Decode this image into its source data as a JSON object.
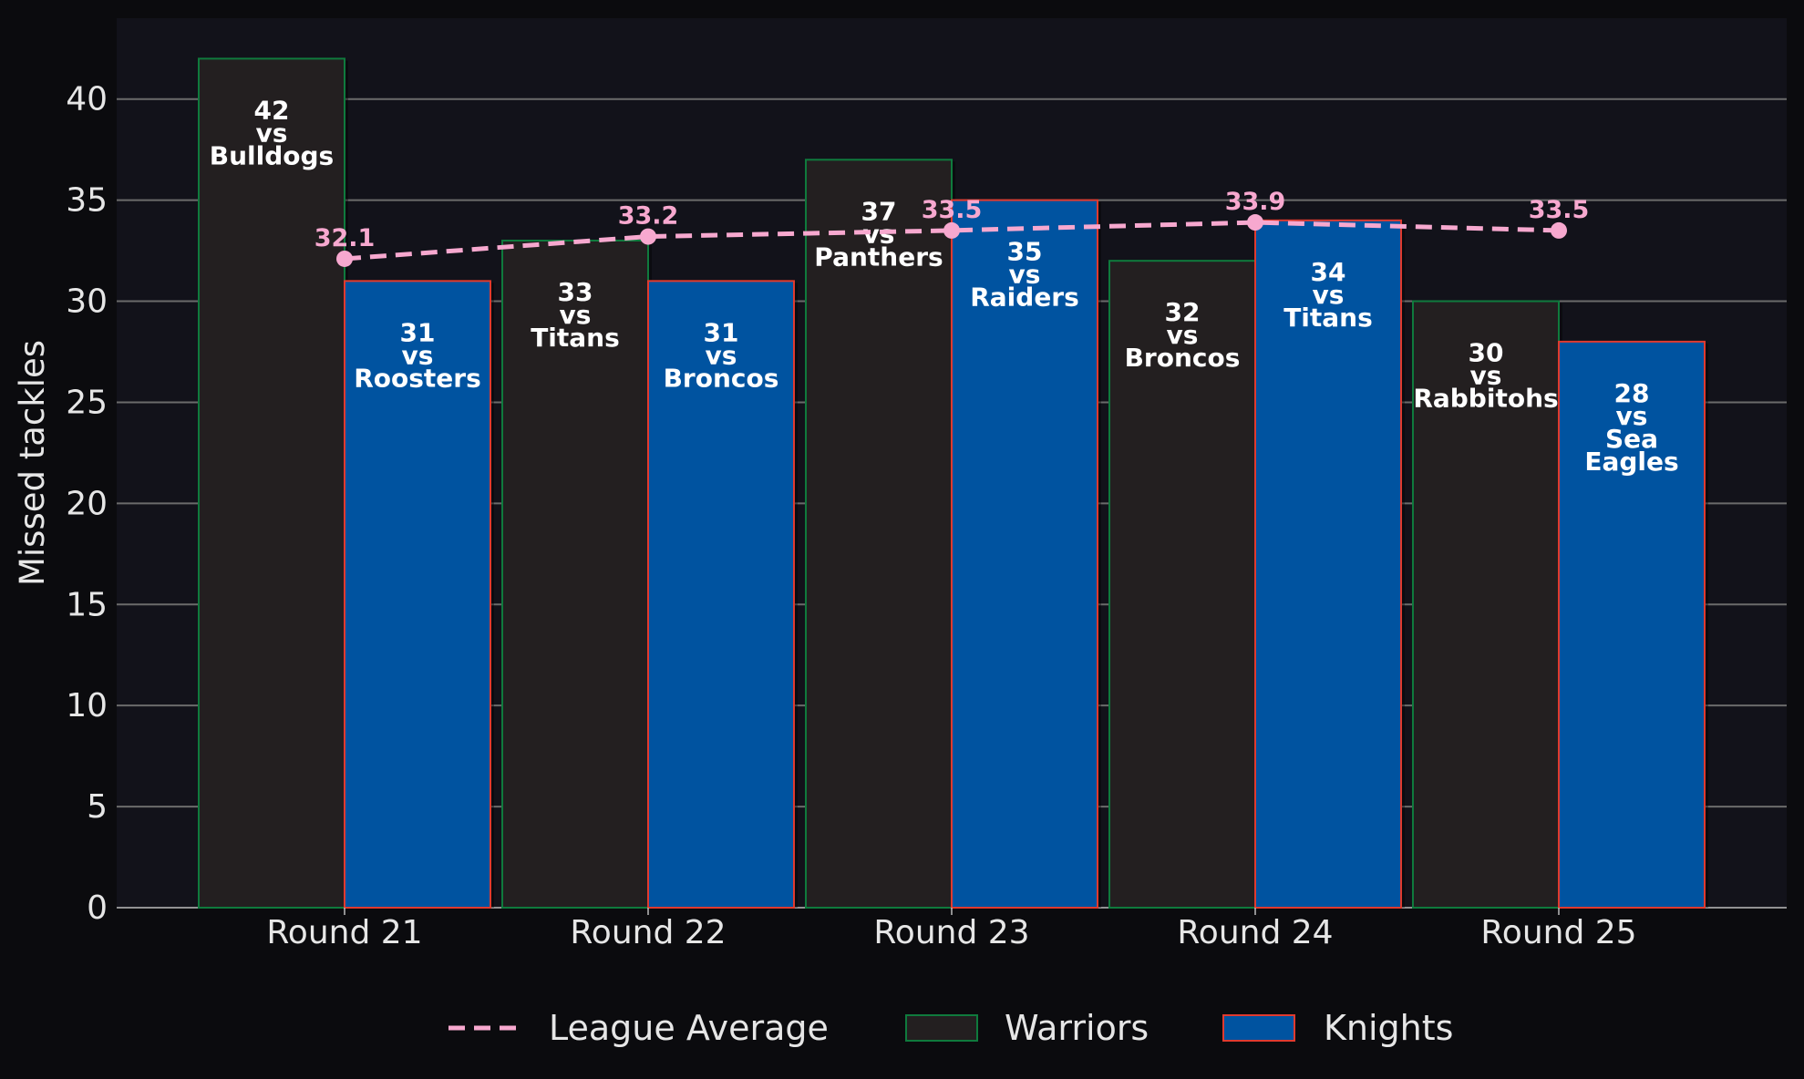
{
  "chart_data": {
    "type": "bar",
    "categories": [
      "Round 21",
      "Round 22",
      "Round 23",
      "Round 24",
      "Round 25"
    ],
    "ylabel": "Missed tackles",
    "ylim": [
      0,
      44
    ],
    "yticks": [
      0,
      5,
      10,
      15,
      20,
      25,
      30,
      35,
      40
    ],
    "grid": "horizontal",
    "legend_position": "bottom",
    "series": [
      {
        "name": "Warriors",
        "values": [
          42,
          33,
          37,
          32,
          30
        ],
        "labels": [
          "42\nvs\nBulldogs",
          "33\nvs\nTitans",
          "37\nvs\nPanthers",
          "32\nvs\nBroncos",
          "30\nvs\nRabbitohs"
        ],
        "fill": "#231f20",
        "edge": "#0f7a3d"
      },
      {
        "name": "Knights",
        "values": [
          31,
          31,
          35,
          34,
          28
        ],
        "labels": [
          "31\nvs\nRoosters",
          "31\nvs\nBroncos",
          "35\nvs\nRaiders",
          "34\nvs\nTitans",
          "28\nvs\nSea\nEagles"
        ],
        "fill": "#0053a0",
        "edge": "#e03a2f"
      }
    ],
    "line": {
      "name": "League Average",
      "values": [
        32.1,
        33.2,
        33.5,
        33.9,
        33.5
      ],
      "labels": [
        "32.1",
        "33.2",
        "33.5",
        "33.9",
        "33.5"
      ],
      "color": "#f7a8cf",
      "style": "dashed"
    },
    "colors": {
      "background": "#0b0b0e",
      "plot_background": "#12121a",
      "grid": "#6b6b6b",
      "text": "#e6e6e6"
    }
  }
}
